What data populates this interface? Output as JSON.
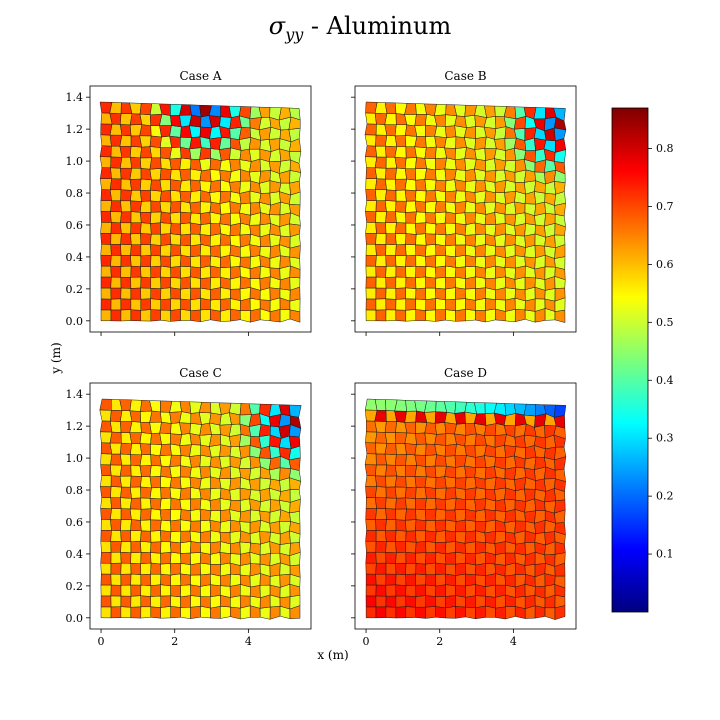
{
  "chart_data": {
    "type": "heatmap",
    "title_main": "σ",
    "title_sub": "yy",
    "title_suffix": " - Aluminum",
    "xlabel": "x (m)",
    "ylabel": "y (m)",
    "xlim": [
      -0.3,
      5.7
    ],
    "ylim": [
      -0.07,
      1.47
    ],
    "xticks": [
      0,
      2,
      4
    ],
    "yticks": [
      0.0,
      0.2,
      0.4,
      0.6,
      0.8,
      1.0,
      1.2,
      1.4
    ],
    "ytick_labels": [
      "0.0",
      "0.2",
      "0.4",
      "0.6",
      "0.8",
      "1.0",
      "1.2",
      "1.4"
    ],
    "mesh": {
      "columns": 20,
      "rows": 20,
      "width_m": 5.4,
      "height_m": 1.37
    },
    "colorbar": {
      "colormap": "jet",
      "min": 0.0,
      "max": 0.87,
      "ticks": [
        0.1,
        0.2,
        0.3,
        0.4,
        0.5,
        0.6,
        0.7,
        0.8
      ],
      "tick_labels": [
        "0.1",
        "0.2",
        "0.3",
        "0.4",
        "0.5",
        "0.6",
        "0.7",
        "0.8"
      ]
    },
    "panels": [
      {
        "title": "Case A",
        "base_value": 0.67,
        "x_gradient": -0.08,
        "checker_amplitude": 0.06,
        "hotspot": {
          "x": 2.8,
          "y": 1.35,
          "min_value": 0.15
        },
        "shows_x_tick_labels": false,
        "shows_y_tick_labels": true
      },
      {
        "title": "Case B",
        "base_value": 0.62,
        "x_gradient": -0.04,
        "checker_amplitude": 0.06,
        "hotspot": {
          "x": 5.2,
          "y": 1.25,
          "min_value": 0.2
        },
        "shows_x_tick_labels": false,
        "shows_y_tick_labels": false
      },
      {
        "title": "Case C",
        "base_value": 0.63,
        "x_gradient": -0.05,
        "checker_amplitude": 0.06,
        "hotspot": {
          "x": 5.2,
          "y": 1.25,
          "min_value": 0.2
        },
        "shows_x_tick_labels": true,
        "shows_y_tick_labels": true
      },
      {
        "title": "Case D",
        "base_value": 0.75,
        "x_gradient": -0.05,
        "checker_amplitude": 0.02,
        "top_band": {
          "top_row_value": 0.45,
          "second_row_value": 0.7,
          "right_end_value": 0.15
        },
        "shows_x_tick_labels": true,
        "shows_y_tick_labels": false
      }
    ]
  }
}
